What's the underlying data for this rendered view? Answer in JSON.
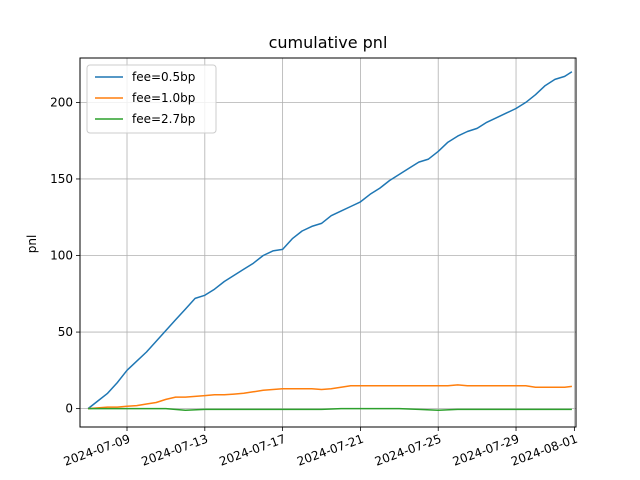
{
  "chart_data": {
    "type": "line",
    "title": "cumulative pnl",
    "xlabel": "",
    "ylabel": "pnl",
    "grid": true,
    "legend_position": "top-left",
    "xlim": [
      "2024-07-06T14:00",
      "2024-08-01T02:00"
    ],
    "ylim": [
      -12,
      229
    ],
    "x_ticks": [
      "2024-07-09",
      "2024-07-13",
      "2024-07-17",
      "2024-07-21",
      "2024-07-25",
      "2024-07-29",
      "2024-08-01"
    ],
    "y_ticks": [
      0,
      50,
      100,
      150,
      200
    ],
    "series": [
      {
        "name": "fee=0.5bp",
        "color": "#1f77b4",
        "x": [
          "2024-07-07",
          "2024-07-07T12:00",
          "2024-07-08",
          "2024-07-08T12:00",
          "2024-07-09",
          "2024-07-09T12:00",
          "2024-07-10",
          "2024-07-10T12:00",
          "2024-07-11",
          "2024-07-11T12:00",
          "2024-07-12",
          "2024-07-12T12:00",
          "2024-07-13",
          "2024-07-13T12:00",
          "2024-07-14",
          "2024-07-14T12:00",
          "2024-07-15",
          "2024-07-15T12:00",
          "2024-07-16",
          "2024-07-16T12:00",
          "2024-07-17",
          "2024-07-17T12:00",
          "2024-07-18",
          "2024-07-18T12:00",
          "2024-07-19",
          "2024-07-19T12:00",
          "2024-07-20",
          "2024-07-20T12:00",
          "2024-07-21",
          "2024-07-21T12:00",
          "2024-07-22",
          "2024-07-22T12:00",
          "2024-07-23",
          "2024-07-23T12:00",
          "2024-07-24",
          "2024-07-24T12:00",
          "2024-07-25",
          "2024-07-25T12:00",
          "2024-07-26",
          "2024-07-26T12:00",
          "2024-07-27",
          "2024-07-27T12:00",
          "2024-07-28",
          "2024-07-28T12:00",
          "2024-07-29",
          "2024-07-29T12:00",
          "2024-07-30",
          "2024-07-30T12:00",
          "2024-07-31",
          "2024-07-31T12:00",
          "2024-07-31T21:00"
        ],
        "y": [
          0,
          5,
          10,
          17,
          25,
          31,
          37,
          44,
          51,
          58,
          65,
          72,
          74,
          78,
          83,
          87,
          91,
          95,
          100,
          103,
          104,
          111,
          116,
          119,
          121,
          126,
          129,
          132,
          135,
          140,
          144,
          149,
          153,
          157,
          161,
          163,
          168,
          174,
          178,
          181,
          183,
          187,
          190,
          193,
          196,
          200,
          205,
          211,
          215,
          217,
          220
        ]
      },
      {
        "name": "fee=1.0bp",
        "color": "#ff7f0e",
        "x": [
          "2024-07-07",
          "2024-07-07T12:00",
          "2024-07-08",
          "2024-07-08T12:00",
          "2024-07-09",
          "2024-07-09T12:00",
          "2024-07-10",
          "2024-07-10T12:00",
          "2024-07-11",
          "2024-07-11T12:00",
          "2024-07-12",
          "2024-07-12T12:00",
          "2024-07-13",
          "2024-07-13T12:00",
          "2024-07-14",
          "2024-07-14T12:00",
          "2024-07-15",
          "2024-07-15T12:00",
          "2024-07-16",
          "2024-07-16T12:00",
          "2024-07-17",
          "2024-07-17T12:00",
          "2024-07-18",
          "2024-07-18T12:00",
          "2024-07-19",
          "2024-07-19T12:00",
          "2024-07-20",
          "2024-07-20T12:00",
          "2024-07-21",
          "2024-07-21T12:00",
          "2024-07-22",
          "2024-07-22T12:00",
          "2024-07-23",
          "2024-07-23T12:00",
          "2024-07-24",
          "2024-07-24T12:00",
          "2024-07-25",
          "2024-07-25T12:00",
          "2024-07-26",
          "2024-07-26T12:00",
          "2024-07-27",
          "2024-07-27T12:00",
          "2024-07-28",
          "2024-07-28T12:00",
          "2024-07-29",
          "2024-07-29T12:00",
          "2024-07-30",
          "2024-07-30T12:00",
          "2024-07-31",
          "2024-07-31T12:00",
          "2024-07-31T21:00"
        ],
        "y": [
          0,
          0.5,
          1,
          1,
          1.5,
          2,
          3,
          4,
          6,
          7.5,
          7.5,
          8,
          8.5,
          9,
          9,
          9.5,
          10,
          11,
          12,
          12.5,
          13,
          13,
          13,
          13,
          12.5,
          13,
          14,
          15,
          15,
          15,
          15,
          15,
          15,
          15,
          15,
          15,
          15,
          15,
          15.5,
          15,
          15,
          15,
          15,
          15,
          15,
          15,
          14,
          14,
          14,
          14,
          14.5
        ]
      },
      {
        "name": "fee=2.7bp",
        "color": "#2ca02c",
        "x": [
          "2024-07-07",
          "2024-07-08",
          "2024-07-09",
          "2024-07-10",
          "2024-07-11",
          "2024-07-12",
          "2024-07-13",
          "2024-07-14",
          "2024-07-15",
          "2024-07-16",
          "2024-07-17",
          "2024-07-18",
          "2024-07-19",
          "2024-07-20",
          "2024-07-21",
          "2024-07-22",
          "2024-07-23",
          "2024-07-24",
          "2024-07-25",
          "2024-07-26",
          "2024-07-27",
          "2024-07-28",
          "2024-07-29",
          "2024-07-30",
          "2024-07-31",
          "2024-07-31T21:00"
        ],
        "y": [
          0,
          0,
          0,
          0,
          0,
          -1,
          -0.5,
          -0.5,
          -0.5,
          -0.5,
          -0.5,
          -0.5,
          -0.5,
          0,
          0,
          0,
          0,
          -0.5,
          -1,
          -0.5,
          -0.5,
          -0.5,
          -0.5,
          -0.5,
          -0.5,
          -0.5
        ]
      }
    ]
  }
}
